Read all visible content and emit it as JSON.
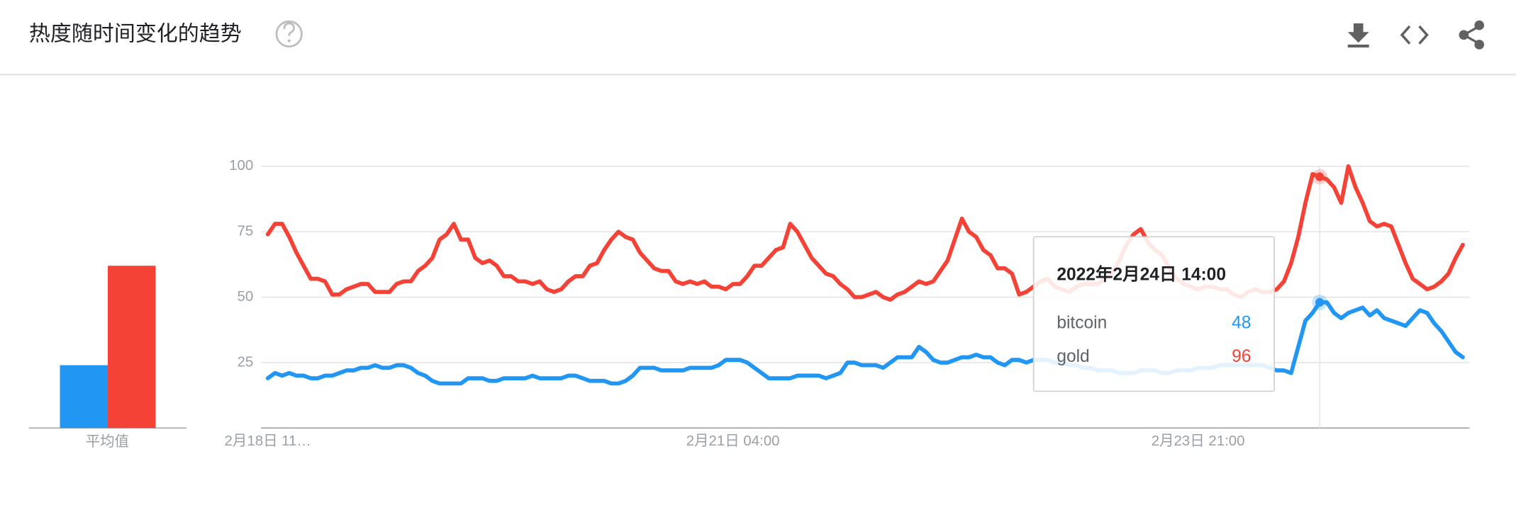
{
  "header": {
    "title": "热度随时间变化的趋势"
  },
  "chart_data": [
    {
      "type": "bar",
      "categories": [
        "平均值"
      ],
      "ylim": [
        0,
        100
      ],
      "series": [
        {
          "color": "#2196f3",
          "values": [
            24
          ]
        },
        {
          "color": "#f44336",
          "values": [
            62
          ]
        }
      ]
    },
    {
      "type": "line",
      "ylim": [
        0,
        100
      ],
      "yticks": [
        25,
        50,
        75,
        100
      ],
      "grid": true,
      "tooltip_title": "2022年2月24日 14:00",
      "categories": [
        "2月18日 11…",
        null,
        null,
        null,
        null,
        null,
        null,
        null,
        null,
        null,
        null,
        null,
        null,
        null,
        null,
        null,
        null,
        null,
        null,
        null,
        null,
        null,
        null,
        null,
        null,
        null,
        null,
        null,
        null,
        null,
        null,
        null,
        null,
        null,
        null,
        null,
        null,
        null,
        null,
        null,
        null,
        null,
        null,
        null,
        null,
        null,
        null,
        null,
        null,
        null,
        null,
        null,
        null,
        null,
        null,
        null,
        null,
        null,
        null,
        null,
        null,
        null,
        null,
        null,
        null,
        "2月21日 04:00",
        null,
        null,
        null,
        null,
        null,
        null,
        null,
        null,
        null,
        null,
        null,
        null,
        null,
        null,
        null,
        null,
        null,
        null,
        null,
        null,
        null,
        null,
        null,
        null,
        null,
        null,
        null,
        null,
        null,
        null,
        null,
        null,
        null,
        null,
        null,
        null,
        null,
        null,
        null,
        null,
        null,
        null,
        null,
        null,
        null,
        null,
        null,
        null,
        null,
        null,
        null,
        null,
        null,
        null,
        null,
        null,
        null,
        null,
        null,
        null,
        null,
        null,
        null,
        null,
        "2月23日 21:00",
        null,
        null,
        null,
        null,
        null,
        null,
        null,
        null,
        null,
        null,
        null,
        null,
        null,
        null,
        null,
        null,
        null,
        null,
        null,
        null,
        null,
        null,
        null,
        null,
        null,
        null,
        null,
        null,
        null,
        null,
        null,
        null,
        null,
        null,
        null,
        null,
        null
      ],
      "series": [
        {
          "name": "bitcoin",
          "color": "#2196f3",
          "values": [
            19,
            21,
            20,
            21,
            20,
            20,
            19,
            19,
            20,
            20,
            21,
            22,
            22,
            23,
            23,
            24,
            23,
            23,
            24,
            24,
            23,
            21,
            20,
            18,
            17,
            17,
            17,
            17,
            19,
            19,
            19,
            18,
            18,
            19,
            19,
            19,
            19,
            20,
            19,
            19,
            19,
            19,
            20,
            20,
            19,
            18,
            18,
            18,
            17,
            17,
            18,
            20,
            23,
            23,
            23,
            22,
            22,
            22,
            22,
            23,
            23,
            23,
            23,
            24,
            26,
            26,
            26,
            25,
            23,
            21,
            19,
            19,
            19,
            19,
            20,
            20,
            20,
            20,
            19,
            20,
            21,
            25,
            25,
            24,
            24,
            24,
            23,
            25,
            27,
            27,
            27,
            31,
            29,
            26,
            25,
            25,
            26,
            27,
            27,
            28,
            27,
            27,
            25,
            24,
            26,
            26,
            25,
            26,
            26,
            26,
            25,
            25,
            24,
            24,
            23,
            23,
            22,
            22,
            22,
            21,
            21,
            21,
            22,
            22,
            22,
            21,
            21,
            22,
            22,
            22,
            23,
            23,
            23,
            24,
            24,
            24,
            24,
            24,
            24,
            24,
            23,
            22,
            22,
            21,
            31,
            41,
            44,
            48,
            48,
            44,
            42,
            44,
            45,
            46,
            43,
            45,
            42,
            41,
            40,
            39,
            42,
            45,
            44,
            40,
            37,
            33,
            29,
            27
          ]
        },
        {
          "name": "gold",
          "color": "#f44336",
          "values": [
            74,
            78,
            78,
            73,
            67,
            62,
            57,
            57,
            56,
            51,
            51,
            53,
            54,
            55,
            55,
            52,
            52,
            52,
            55,
            56,
            56,
            60,
            62,
            65,
            72,
            74,
            78,
            72,
            72,
            65,
            63,
            64,
            62,
            58,
            58,
            56,
            56,
            55,
            56,
            53,
            52,
            53,
            56,
            58,
            58,
            62,
            63,
            68,
            72,
            75,
            73,
            72,
            67,
            64,
            61,
            60,
            60,
            56,
            55,
            56,
            55,
            56,
            54,
            54,
            53,
            55,
            55,
            58,
            62,
            62,
            65,
            68,
            69,
            78,
            75,
            70,
            65,
            62,
            59,
            58,
            55,
            53,
            50,
            50,
            51,
            52,
            50,
            49,
            51,
            52,
            54,
            56,
            55,
            56,
            60,
            64,
            72,
            80,
            75,
            73,
            68,
            66,
            61,
            61,
            59,
            51,
            52,
            54,
            56,
            57,
            54,
            53,
            52,
            54,
            55,
            55,
            55,
            57,
            59,
            64,
            70,
            74,
            76,
            71,
            68,
            66,
            61,
            57,
            55,
            54,
            53,
            54,
            54,
            53,
            53,
            51,
            50,
            52,
            53,
            52,
            52,
            53,
            56,
            63,
            73,
            86,
            97,
            96,
            95,
            92,
            86,
            100,
            92,
            86,
            79,
            77,
            78,
            77,
            70,
            63,
            57,
            55,
            53,
            54,
            56,
            59,
            65,
            70
          ]
        }
      ]
    }
  ]
}
